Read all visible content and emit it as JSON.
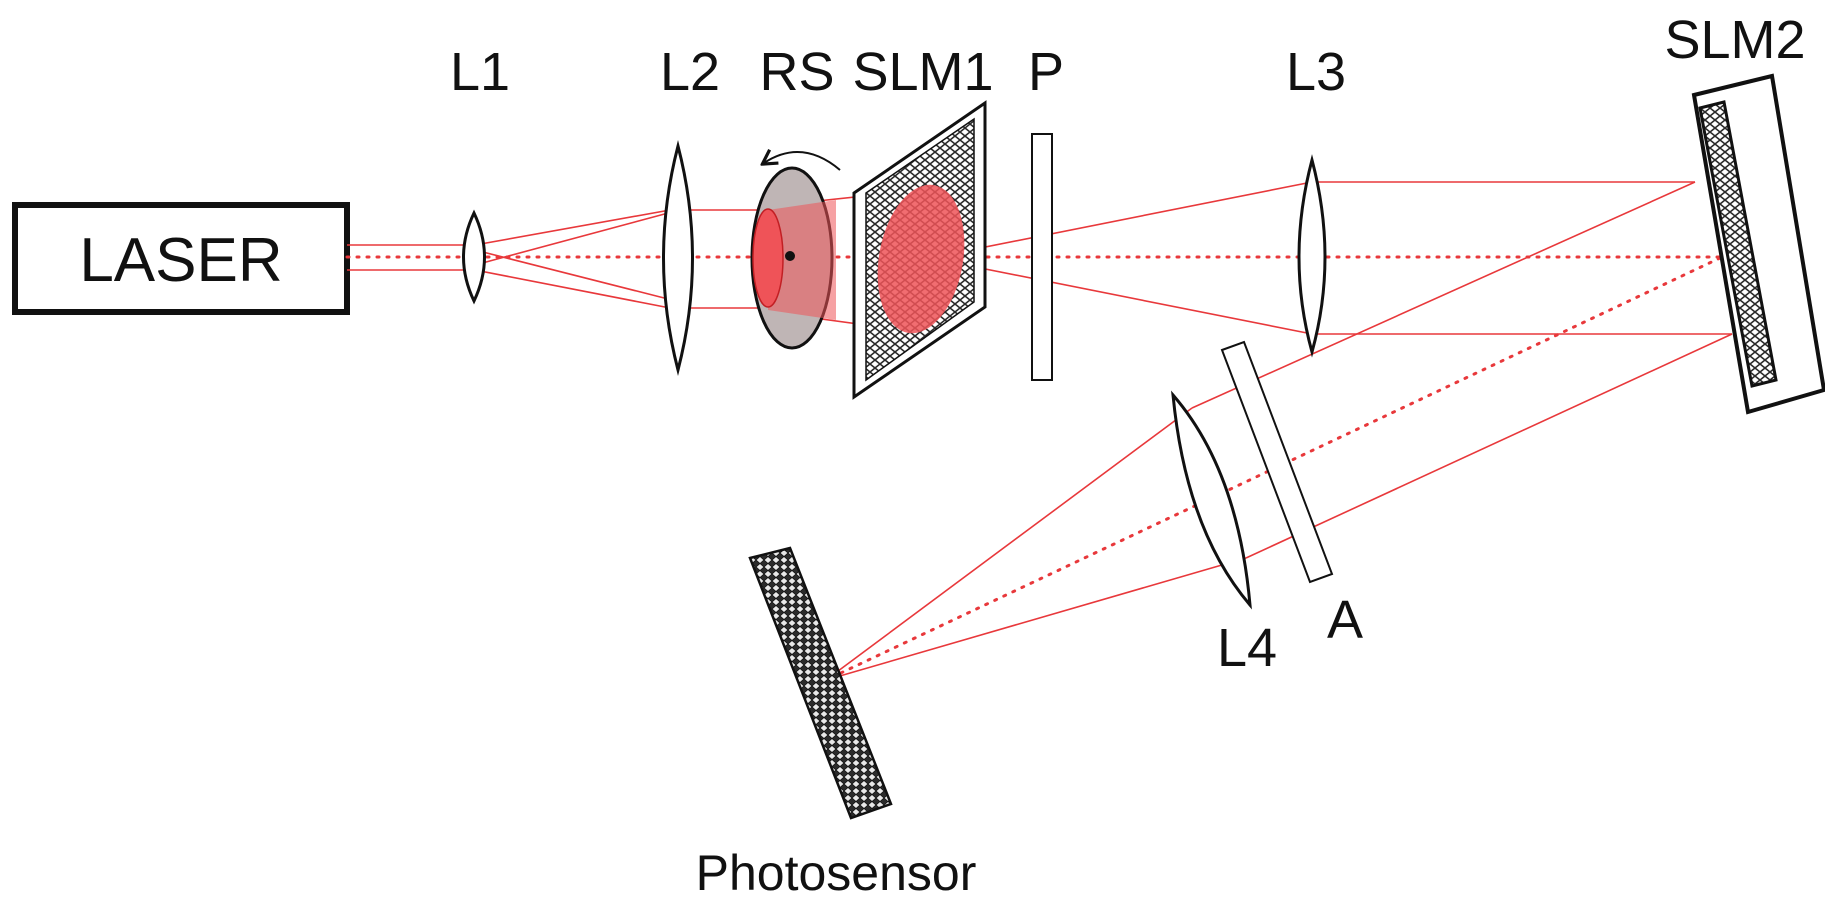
{
  "labels": {
    "laser": "LASER",
    "l1": "L1",
    "l2": "L2",
    "rs": "RS",
    "slm1": "SLM1",
    "p": "P",
    "l3": "L3",
    "slm2": "SLM2",
    "l4": "L4",
    "a": "A",
    "photosensor": "Photosensor"
  },
  "colors": {
    "beam": "#e8383b",
    "beam_fill": "#ef5358",
    "outline": "#111111",
    "diffuser": "#bfb5b5",
    "pattern": "#333333"
  }
}
